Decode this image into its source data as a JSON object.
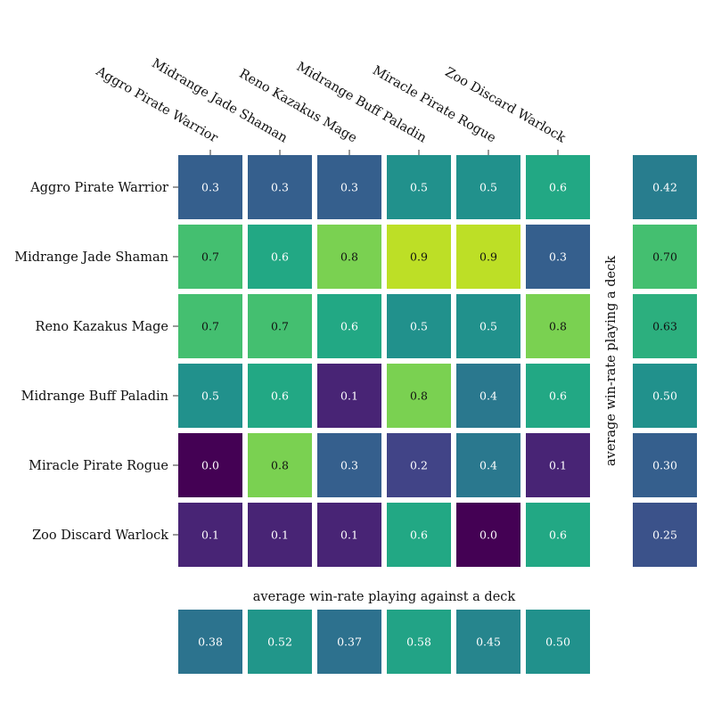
{
  "chart_data": {
    "type": "heatmap",
    "title": "",
    "rows": [
      "Aggro Pirate Warrior",
      "Midrange Jade Shaman",
      "Reno Kazakus Mage",
      "Midrange Buff Paladin",
      "Miracle Pirate Rogue",
      "Zoo Discard Warlock"
    ],
    "columns": [
      "Aggro Pirate Warrior",
      "Midrange Jade Shaman",
      "Reno Kazakus Mage",
      "Midrange Buff Paladin",
      "Miracle Pirate Rogue",
      "Zoo Discard Warlock"
    ],
    "values": [
      [
        0.3,
        0.3,
        0.3,
        0.5,
        0.5,
        0.6
      ],
      [
        0.7,
        0.6,
        0.8,
        0.9,
        0.9,
        0.3
      ],
      [
        0.7,
        0.7,
        0.6,
        0.5,
        0.5,
        0.8
      ],
      [
        0.5,
        0.6,
        0.1,
        0.8,
        0.4,
        0.6
      ],
      [
        0.0,
        0.8,
        0.3,
        0.2,
        0.4,
        0.1
      ],
      [
        0.1,
        0.1,
        0.1,
        0.6,
        0.0,
        0.6
      ]
    ],
    "value_labels": [
      [
        "0.3",
        "0.3",
        "0.3",
        "0.5",
        "0.5",
        "0.6"
      ],
      [
        "0.7",
        "0.6",
        "0.8",
        "0.9",
        "0.9",
        "0.3"
      ],
      [
        "0.7",
        "0.7",
        "0.6",
        "0.5",
        "0.5",
        "0.8"
      ],
      [
        "0.5",
        "0.6",
        "0.1",
        "0.8",
        "0.4",
        "0.6"
      ],
      [
        "0.0",
        "0.8",
        "0.3",
        "0.2",
        "0.4",
        "0.1"
      ],
      [
        "0.1",
        "0.1",
        "0.1",
        "0.6",
        "0.0",
        "0.6"
      ]
    ],
    "row_average": {
      "label": "average win-rate playing a deck",
      "values": [
        0.42,
        0.7,
        0.63,
        0.5,
        0.3,
        0.25
      ],
      "value_labels": [
        "0.42",
        "0.70",
        "0.63",
        "0.50",
        "0.30",
        "0.25"
      ]
    },
    "column_average": {
      "label": "average win-rate playing against a deck",
      "values": [
        0.38,
        0.52,
        0.37,
        0.58,
        0.45,
        0.5
      ],
      "value_labels": [
        "0.38",
        "0.52",
        "0.37",
        "0.58",
        "0.45",
        "0.50"
      ]
    },
    "color_scale": {
      "name": "viridis",
      "range": [
        0.0,
        1.0
      ]
    },
    "legend": "none",
    "grid": false
  }
}
